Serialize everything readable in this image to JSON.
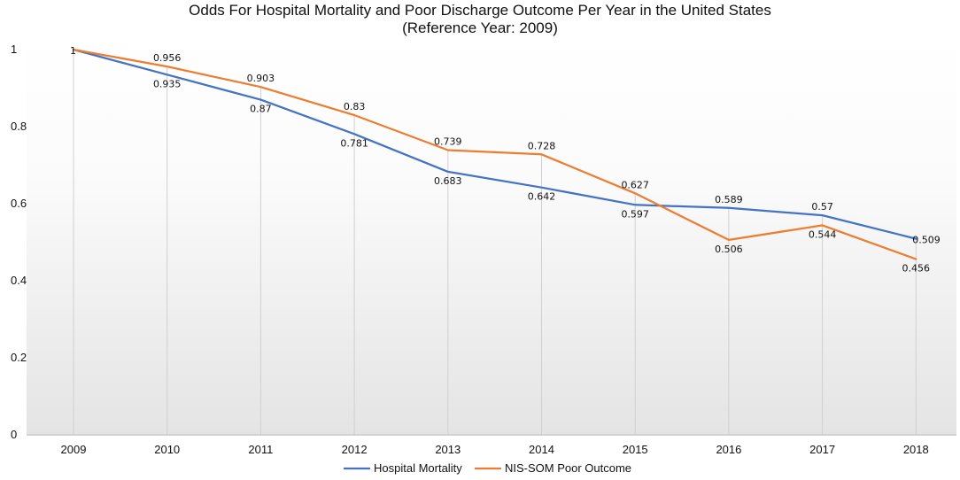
{
  "chart_data": {
    "type": "line",
    "title": "Odds For Hospital Mortality and Poor Discharge Outcome Per Year in the United States",
    "subtitle": "(Reference Year: 2009)",
    "xlabel": "",
    "ylabel": "",
    "ylim": [
      0,
      1
    ],
    "y_ticks": [
      "0",
      "0.2",
      "0.4",
      "0.6",
      "0.8",
      "1"
    ],
    "categories": [
      "2009",
      "2010",
      "2011",
      "2012",
      "2013",
      "2014",
      "2015",
      "2016",
      "2017",
      "2018"
    ],
    "grid": "vertical drop lines",
    "legend_position": "bottom",
    "series": [
      {
        "name": "Hospital Mortality",
        "color": "#4472C4",
        "values": [
          1,
          0.935,
          0.87,
          0.781,
          0.683,
          0.642,
          0.597,
          0.589,
          0.57,
          0.509
        ],
        "labels": [
          "1",
          "0.935",
          "0.87",
          "0.781",
          "0.683",
          "0.642",
          "0.597",
          "0.589",
          "0.57",
          "0.509"
        ],
        "label_side": [
          "right",
          "below",
          "below",
          "below",
          "below",
          "below",
          "below",
          "above",
          "above",
          "right"
        ]
      },
      {
        "name": "NIS-SOM Poor Outcome",
        "color": "#ED7D31",
        "values": [
          1,
          0.956,
          0.903,
          0.83,
          0.739,
          0.728,
          0.627,
          0.506,
          0.544,
          0.456
        ],
        "labels": [
          "1",
          "0.956",
          "0.903",
          "0.83",
          "0.739",
          "0.728",
          "0.627",
          "0.506",
          "0.544",
          "0.456"
        ],
        "label_side": [
          "hidden",
          "above",
          "above",
          "above",
          "above",
          "above",
          "above",
          "below",
          "below",
          "below"
        ]
      }
    ]
  }
}
